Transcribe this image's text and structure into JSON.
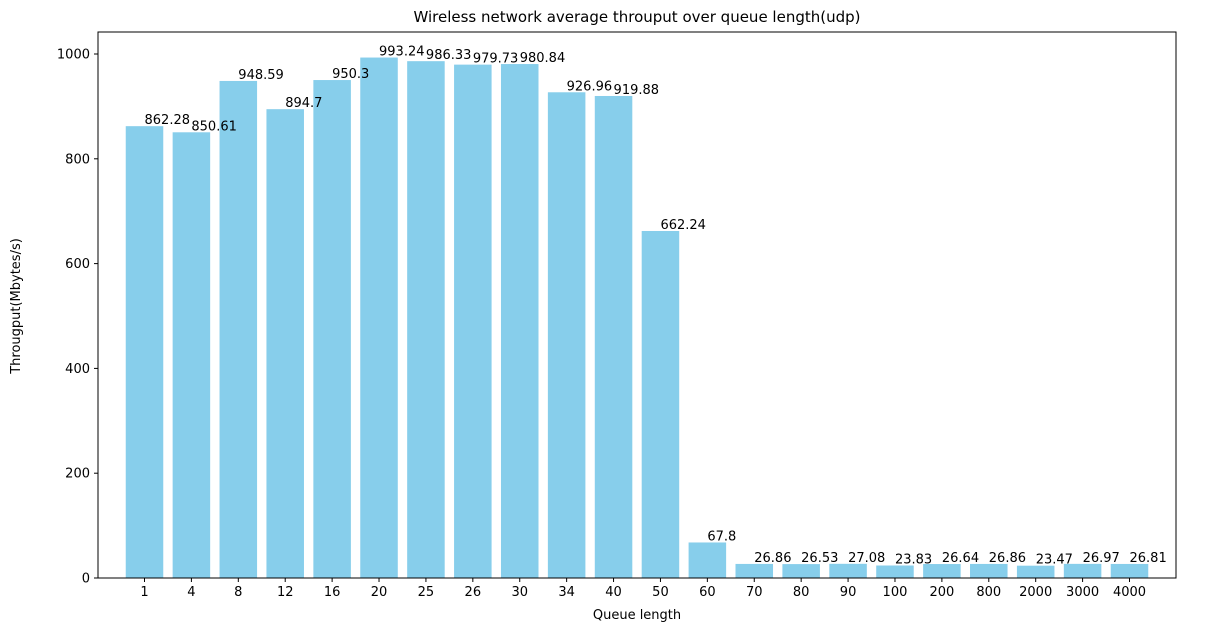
{
  "chart_data": {
    "type": "bar",
    "title": "Wireless network average throuput over queue length(udp)",
    "xlabel": "Queue length",
    "ylabel": "Througput(Mbytes/s)",
    "categories": [
      "1",
      "4",
      "8",
      "12",
      "16",
      "20",
      "25",
      "26",
      "30",
      "34",
      "40",
      "50",
      "60",
      "70",
      "80",
      "90",
      "100",
      "200",
      "800",
      "2000",
      "3000",
      "4000"
    ],
    "values": [
      862.28,
      850.61,
      948.59,
      894.7,
      950.3,
      993.24,
      986.33,
      979.73,
      980.84,
      926.96,
      919.88,
      662.24,
      67.8,
      26.86,
      26.53,
      27.08,
      23.83,
      26.64,
      26.86,
      23.47,
      26.97,
      26.81
    ],
    "value_labels": [
      "862.28",
      "850.61",
      "948.59",
      "894.7",
      "950.3",
      "993.24",
      "986.33",
      "979.73",
      "980.84",
      "926.96",
      "919.88",
      "662.24",
      "67.8",
      "26.86",
      "26.53",
      "27.08",
      "23.83",
      "26.64",
      "26.86",
      "23.47",
      "26.97",
      "26.81"
    ],
    "ylim": [
      0,
      1042
    ],
    "yticks": [
      0,
      200,
      400,
      600,
      800,
      1000
    ],
    "bar_color": "#87ceeb",
    "grid": false,
    "legend": "none"
  }
}
